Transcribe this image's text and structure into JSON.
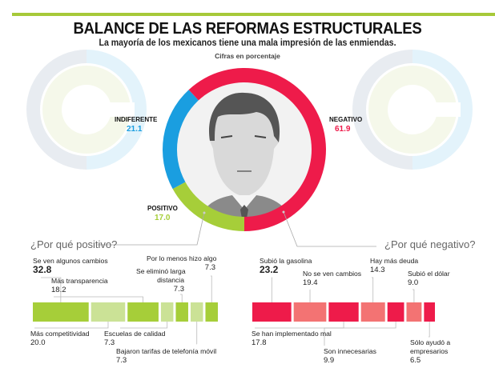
{
  "header": {
    "title": "BALANCE DE LAS REFORMAS ESTRUCTURALES",
    "subtitle": "La mayoría de los mexicanos tiene una mala impresión de las enmiendas.",
    "note": "Cifras en porcentaje"
  },
  "colors": {
    "accent_bar": "#a6c939",
    "negative": "#ee1b4a",
    "negative_light": "#f37373",
    "indifferent": "#1a9ee0",
    "positive": "#a6ce39",
    "positive_light": "#cbe296"
  },
  "chart_data": [
    {
      "type": "pie",
      "title": "BALANCE DE LAS REFORMAS ESTRUCTURALES",
      "subtitle": "La mayoría de los mexicanos tiene una mala impresión de las enmiendas.",
      "unit": "Cifras en porcentaje",
      "categories": [
        "NEGATIVO",
        "INDIFERENTE",
        "POSITIVO"
      ],
      "values": [
        61.9,
        21.1,
        17.0
      ],
      "value_labels": [
        "61.9",
        "21.1",
        "17.0"
      ],
      "colors": [
        "#ee1b4a",
        "#1a9ee0",
        "#a6ce39"
      ],
      "style": "donut"
    },
    {
      "type": "bar",
      "title": "¿Por qué positivo?",
      "orientation": "horizontal-segments",
      "categories": [
        "Se ven algunos cambios",
        "Más competitividad",
        "Más transparencia",
        "Escuelas de calidad",
        "Se eliminó larga distancia",
        "Bajaron tarifas de telefonía móvil",
        "Por lo menos hizo algo"
      ],
      "values": [
        32.8,
        20.0,
        18.2,
        7.3,
        7.3,
        7.3,
        7.3
      ],
      "value_labels": [
        "32.8",
        "20.0",
        "18.2",
        "7.3",
        "7.3",
        "7.3",
        "7.3"
      ],
      "label_positions": [
        "top",
        "bottom",
        "top",
        "bottom",
        "top",
        "bottom",
        "top"
      ],
      "shades": [
        "dark",
        "light",
        "dark",
        "light",
        "dark",
        "light",
        "dark"
      ]
    },
    {
      "type": "bar",
      "title": "¿Por qué negativo?",
      "orientation": "horizontal-segments",
      "categories": [
        "Subió la gasolina",
        "No se ven cambios",
        "Se han implementado mal",
        "Hay más deuda",
        "Son innecesarias",
        "Subió el dólar",
        "Sólo ayudó a empresarios"
      ],
      "values": [
        23.2,
        19.4,
        17.8,
        14.3,
        9.9,
        9.0,
        6.5
      ],
      "value_labels": [
        "23.2",
        "19.4",
        "17.8",
        "14.3",
        "9.9",
        "9.0",
        "6.5"
      ],
      "label_positions": [
        "top",
        "top",
        "bottom",
        "top",
        "bottom",
        "top",
        "bottom"
      ],
      "shades": [
        "dark",
        "light",
        "dark",
        "light",
        "dark",
        "light",
        "dark"
      ]
    }
  ],
  "labels": {
    "pos_q": "¿Por qué positivo?",
    "neg_q": "¿Por qué negativo?",
    "pos": [
      {
        "name": "Se ven algunos cambios",
        "value": "32.8"
      },
      {
        "name": "Más competitividad",
        "value": "20.0"
      },
      {
        "name": "Más transparencia",
        "value": "18.2"
      },
      {
        "name": "Escuelas de calidad",
        "value": "7.3"
      },
      {
        "name1": "Se eliminó larga",
        "name2": "distancia",
        "value": "7.3"
      },
      {
        "name": "Bajaron tarifas de telefonía móvil",
        "value": "7.3"
      },
      {
        "name": "Por lo menos hizo algo",
        "value": "7.3"
      }
    ],
    "neg": [
      {
        "name": "Subió la gasolina",
        "value": "23.2"
      },
      {
        "name": "No se ven cambios",
        "value": "19.4"
      },
      {
        "name": "Se han implementado mal",
        "value": "17.8"
      },
      {
        "name": "Hay más deuda",
        "value": "14.3"
      },
      {
        "name": "Son innecesarias",
        "value": "9.9"
      },
      {
        "name": "Subió el dólar",
        "value": "9.0"
      },
      {
        "name1": "Sólo ayudó a",
        "name2": "empresarios",
        "value": "6.5"
      }
    ]
  }
}
